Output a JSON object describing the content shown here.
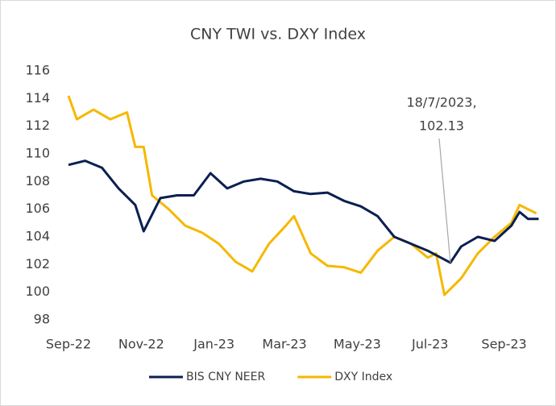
{
  "chart_data": {
    "type": "line",
    "title": "CNY TWI vs. DXY Index",
    "xlim": [
      "2022-09-01",
      "2023-10-01"
    ],
    "xticks": [
      {
        "value": "2022-09-01",
        "label": "Sep-22"
      },
      {
        "value": "2022-11-01",
        "label": "Nov-22"
      },
      {
        "value": "2023-01-01",
        "label": "Jan-23"
      },
      {
        "value": "2023-03-01",
        "label": "Mar-23"
      },
      {
        "value": "2023-05-01",
        "label": "May-23"
      },
      {
        "value": "2023-07-01",
        "label": "Jul-23"
      },
      {
        "value": "2023-09-01",
        "label": "Sep-23"
      }
    ],
    "ylim": [
      98,
      116
    ],
    "yticks": [
      98,
      100,
      102,
      104,
      106,
      108,
      110,
      112,
      114,
      116
    ],
    "legend": "bottom",
    "series": [
      {
        "name": "BIS CNY NEER",
        "color": "#0b1f51",
        "x": [
          "2022-09-01",
          "2022-09-15",
          "2022-09-29",
          "2022-10-13",
          "2022-10-27",
          "2022-11-03",
          "2022-11-17",
          "2022-12-01",
          "2022-12-15",
          "2022-12-29",
          "2023-01-12",
          "2023-01-26",
          "2023-02-09",
          "2023-02-23",
          "2023-03-09",
          "2023-03-23",
          "2023-04-06",
          "2023-04-20",
          "2023-05-04",
          "2023-05-18",
          "2023-06-01",
          "2023-06-15",
          "2023-06-29",
          "2023-07-18",
          "2023-07-27",
          "2023-08-10",
          "2023-08-24",
          "2023-09-07",
          "2023-09-14",
          "2023-09-21",
          "2023-09-30"
        ],
        "values": [
          109.2,
          109.5,
          109.0,
          107.5,
          106.3,
          104.4,
          106.8,
          107.0,
          107.0,
          108.6,
          107.5,
          108.0,
          108.2,
          108.0,
          107.3,
          107.1,
          107.2,
          106.6,
          106.2,
          105.5,
          104.0,
          103.5,
          103.0,
          102.13,
          103.3,
          104.0,
          103.7,
          104.8,
          105.8,
          105.3,
          105.3
        ]
      },
      {
        "name": "DXY Index",
        "color": "#f6b800",
        "x": [
          "2022-09-01",
          "2022-09-08",
          "2022-09-22",
          "2022-10-06",
          "2022-10-20",
          "2022-10-27",
          "2022-11-03",
          "2022-11-10",
          "2022-11-24",
          "2022-12-08",
          "2022-12-22",
          "2023-01-05",
          "2023-01-19",
          "2023-02-02",
          "2023-02-16",
          "2023-03-02",
          "2023-03-09",
          "2023-03-23",
          "2023-04-06",
          "2023-04-20",
          "2023-05-04",
          "2023-05-18",
          "2023-06-01",
          "2023-06-15",
          "2023-06-29",
          "2023-07-06",
          "2023-07-13",
          "2023-07-27",
          "2023-08-10",
          "2023-08-24",
          "2023-09-07",
          "2023-09-14",
          "2023-09-21",
          "2023-09-28"
        ],
        "values": [
          114.2,
          112.5,
          113.2,
          112.5,
          113.0,
          110.5,
          110.5,
          107.0,
          106.0,
          104.8,
          104.3,
          103.5,
          102.2,
          101.5,
          103.5,
          104.8,
          105.5,
          102.8,
          101.9,
          101.8,
          101.4,
          103.0,
          104.0,
          103.5,
          102.5,
          102.8,
          99.8,
          101.0,
          102.8,
          104.0,
          105.0,
          106.3,
          106.0,
          105.7
        ]
      }
    ],
    "annotations": [
      {
        "lines": [
          "18/7/2023,",
          "102.13"
        ],
        "x": "2023-07-18",
        "y": 102.13
      }
    ]
  }
}
